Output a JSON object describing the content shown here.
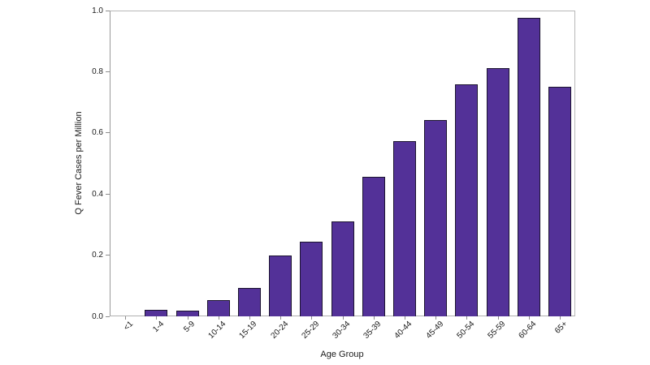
{
  "chart_data": {
    "type": "bar",
    "title": "",
    "xlabel": "Age Group",
    "ylabel": "Q Fever Cases per Million",
    "categories": [
      "<1",
      "1-4",
      "5-9",
      "10-14",
      "15-19",
      "20-24",
      "25-29",
      "30-34",
      "35-39",
      "40-44",
      "45-49",
      "50-54",
      "55-59",
      "60-64",
      "65+"
    ],
    "values": [
      0,
      0.022,
      0.019,
      0.053,
      0.093,
      0.2,
      0.245,
      0.31,
      0.455,
      0.573,
      0.643,
      0.758,
      0.812,
      0.976,
      0.75
    ],
    "ylim": [
      0,
      1.0
    ],
    "yticks": [
      0.0,
      0.2,
      0.4,
      0.6,
      0.8,
      1.0
    ],
    "ytick_labels": [
      "0.0",
      "0.2",
      "0.4",
      "0.6",
      "0.8",
      "1.0"
    ],
    "grid": false,
    "legend": "none",
    "colors": {
      "bar_fill": "#533198",
      "bar_border": "#1c1430",
      "axis_line": "#9a9a9a",
      "text": "#1a1a1a"
    }
  }
}
